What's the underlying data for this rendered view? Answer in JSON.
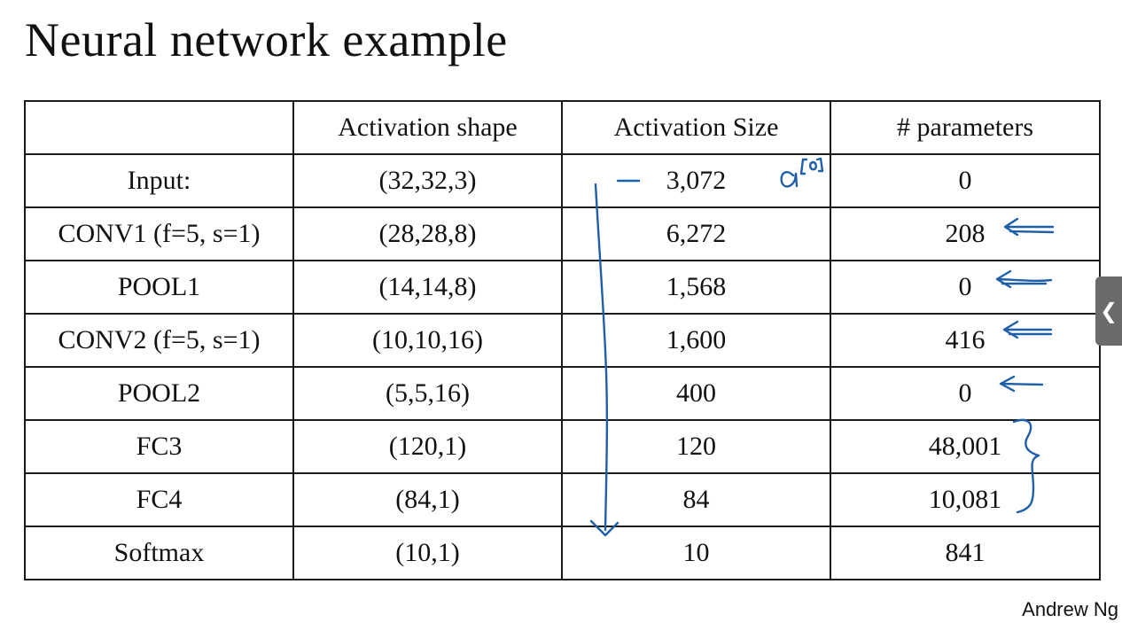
{
  "title": "Neural network example",
  "table": {
    "headers": [
      "",
      "Activation shape",
      "Activation Size",
      "# parameters"
    ],
    "rows": [
      [
        "Input:",
        "(32,32,3)",
        "3,072",
        "0"
      ],
      [
        "CONV1 (f=5, s=1)",
        "(28,28,8)",
        "6,272",
        "208"
      ],
      [
        "POOL1",
        "(14,14,8)",
        "1,568",
        "0"
      ],
      [
        "CONV2  (f=5, s=1)",
        "(10,10,16)",
        "1,600",
        "416"
      ],
      [
        "POOL2",
        "(5,5,16)",
        "400",
        "0"
      ],
      [
        "FC3",
        "(120,1)",
        "120",
        "48,001"
      ],
      [
        "FC4",
        "(84,1)",
        "84",
        "10,081"
      ],
      [
        "Softmax",
        "(10,1)",
        "10",
        "841"
      ]
    ]
  },
  "annotations": {
    "handwritten_label": "a[0]",
    "ink_color": "#1f5fa8"
  },
  "author": "Andrew Ng",
  "side_tab_icon": "chevron-left-icon"
}
